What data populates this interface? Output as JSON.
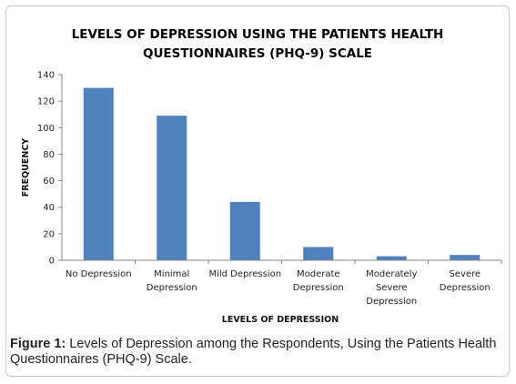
{
  "caption": {
    "label": "Figure 1:",
    "text": "Levels of Depression among the Respondents, Using the Patients Health Questionnaires (PHQ-9) Scale."
  },
  "chart_data": {
    "type": "bar",
    "title_lines": [
      "LEVELS OF DEPRESSION USING THE PATIENTS HEALTH",
      "QUESTIONNAIRES (PHQ-9) SCALE"
    ],
    "xlabel": "LEVELS OF DEPRESSION",
    "ylabel": "FREQUENCY",
    "ylim": [
      0,
      140
    ],
    "yticks": [
      0,
      20,
      40,
      60,
      80,
      100,
      120,
      140
    ],
    "categories": [
      [
        "No Depression"
      ],
      [
        "Minimal",
        "Depression"
      ],
      [
        "Mild Depression"
      ],
      [
        "Moderate",
        "Depression"
      ],
      [
        "Moderately",
        "Severe",
        "Depression"
      ],
      [
        "Severe",
        "Depression"
      ]
    ],
    "values": [
      130,
      109,
      44,
      10,
      3,
      4
    ],
    "bar_color": "#4f81bd",
    "grid": false,
    "legend": "none"
  }
}
